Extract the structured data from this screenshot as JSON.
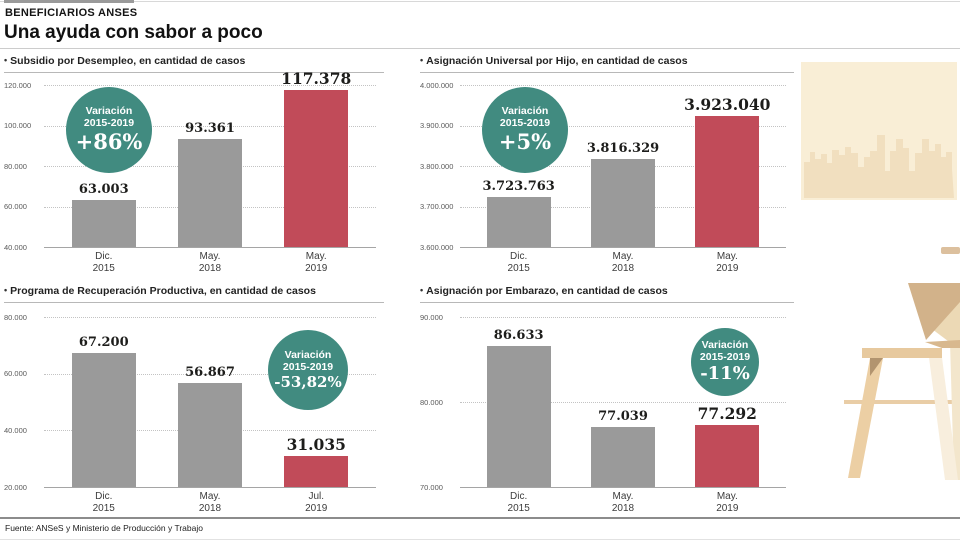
{
  "header": {
    "kicker": "BENEFICIARIOS ANSES",
    "headline": "Una ayuda con sabor a poco"
  },
  "footer": {
    "source": "Fuente: ANSeS y Ministerio de Producción y Trabajo"
  },
  "ui": {
    "bullet": "•"
  },
  "colors": {
    "bar_default": "#9a9a9a",
    "bar_highlight": "#c14b59",
    "badge_background": "#418b80",
    "badge_text": "#ffffff"
  },
  "illustration": {
    "items": [
      "framed-city-skyline-picture",
      "wooden-chair"
    ]
  },
  "chart_data": [
    {
      "type": "bar",
      "title": "Subsidio por Desempleo, en cantidad de casos",
      "categories": [
        "Dic. 2015",
        "May. 2018",
        "May. 2019"
      ],
      "category_lines": [
        [
          "Dic.",
          "2015"
        ],
        [
          "May.",
          "2018"
        ],
        [
          "May.",
          "2019"
        ]
      ],
      "values": [
        63003,
        93361,
        117378
      ],
      "value_labels": [
        "63.003",
        "93.361",
        "117.378"
      ],
      "highlight_index": 2,
      "ylim": [
        40000,
        120000
      ],
      "ytick_labels": [
        "120.000",
        "100.000",
        "80.000",
        "60.000",
        "40.000"
      ],
      "grid": "dotted",
      "badge": {
        "title": "Variación",
        "period": "2015-2019",
        "value": "+86%",
        "position": "left"
      }
    },
    {
      "type": "bar",
      "title": "Asignación Universal por Hijo, en cantidad de casos",
      "categories": [
        "Dic. 2015",
        "May. 2018",
        "May. 2019"
      ],
      "category_lines": [
        [
          "Dic.",
          "2015"
        ],
        [
          "May.",
          "2018"
        ],
        [
          "May.",
          "2019"
        ]
      ],
      "values": [
        3723763,
        3816329,
        3923040
      ],
      "value_labels": [
        "3.723.763",
        "3.816.329",
        "3.923.040"
      ],
      "highlight_index": 2,
      "ylim": [
        3600000,
        4000000
      ],
      "ytick_labels": [
        "4.000.000",
        "3.900.000",
        "3.800.000",
        "3.700.000",
        "3.600.000"
      ],
      "grid": "dotted",
      "badge": {
        "title": "Variación",
        "period": "2015-2019",
        "value": "+5%",
        "position": "left"
      }
    },
    {
      "type": "bar",
      "title": "Programa de Recuperación Productiva, en cantidad de casos",
      "categories": [
        "Dic. 2015",
        "May. 2018",
        "Jul. 2019"
      ],
      "category_lines": [
        [
          "Dic.",
          "2015"
        ],
        [
          "May.",
          "2018"
        ],
        [
          "Jul.",
          "2019"
        ]
      ],
      "values": [
        67200,
        56867,
        31035
      ],
      "value_labels": [
        "67.200",
        "56.867",
        "31.035"
      ],
      "highlight_index": 2,
      "ylim": [
        20000,
        80000
      ],
      "ytick_labels": [
        "80.000",
        "60.000",
        "40.000",
        "20.000"
      ],
      "grid": "dotted",
      "badge": {
        "title": "Variación",
        "period": "2015-2019",
        "value": "-53,82%",
        "position": "right"
      }
    },
    {
      "type": "bar",
      "title": "Asignación por Embarazo, en cantidad de casos",
      "categories": [
        "Dic. 2015",
        "May. 2018",
        "May. 2019"
      ],
      "category_lines": [
        [
          "Dic.",
          "2015"
        ],
        [
          "May.",
          "2018"
        ],
        [
          "May.",
          "2019"
        ]
      ],
      "values": [
        86633,
        77039,
        77292
      ],
      "value_labels": [
        "86.633",
        "77.039",
        "77.292"
      ],
      "highlight_index": 2,
      "ylim": [
        70000,
        90000
      ],
      "ytick_labels": [
        "90.000",
        "80.000",
        "70.000"
      ],
      "grid": "dotted",
      "badge": {
        "title": "Variación",
        "period": "2015-2019",
        "value": "-11%",
        "position": "right"
      }
    }
  ]
}
